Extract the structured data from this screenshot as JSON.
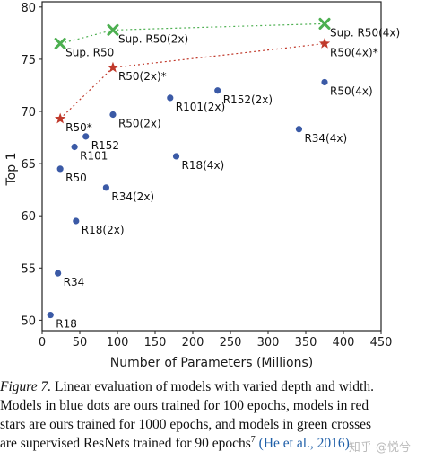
{
  "chart_data": {
    "type": "scatter",
    "xlabel": "Number of Parameters (Millions)",
    "ylabel": "Top 1",
    "xlim": [
      0,
      450
    ],
    "ylim": [
      49,
      80.5
    ],
    "xticks": [
      "0",
      "50",
      "100",
      "150",
      "200",
      "250",
      "300",
      "350",
      "400",
      "450"
    ],
    "yticks": [
      "50",
      "55",
      "60",
      "65",
      "70",
      "75",
      "80"
    ],
    "grid": false,
    "series": [
      {
        "marker": "dot",
        "color": "#3b5aa6",
        "points": [
          {
            "label": "R18",
            "x": 11,
            "y": 50.5
          },
          {
            "label": "R34",
            "x": 21,
            "y": 54.5
          },
          {
            "label": "R18(2x)",
            "x": 45,
            "y": 59.5
          },
          {
            "label": "R50",
            "x": 24,
            "y": 64.5
          },
          {
            "label": "R34(2x)",
            "x": 85,
            "y": 62.7
          },
          {
            "label": "R101",
            "x": 43,
            "y": 66.6
          },
          {
            "label": "R152",
            "x": 58,
            "y": 67.6
          },
          {
            "label": "R18(4x)",
            "x": 178,
            "y": 65.7
          },
          {
            "label": "R50(2x)",
            "x": 94,
            "y": 69.7
          },
          {
            "label": "R101(2x)",
            "x": 170,
            "y": 71.3
          },
          {
            "label": "R152(2x)",
            "x": 233,
            "y": 72.0
          },
          {
            "label": "R34(4x)",
            "x": 341,
            "y": 68.3
          },
          {
            "label": "R50(4x)",
            "x": 375,
            "y": 72.8
          }
        ]
      },
      {
        "marker": "star",
        "color": "#c0392b",
        "connected": true,
        "points": [
          {
            "label": "R50*",
            "x": 24,
            "y": 69.3
          },
          {
            "label": "R50(2x)*",
            "x": 94,
            "y": 74.2
          },
          {
            "label": "R50(4x)*",
            "x": 375,
            "y": 76.5
          }
        ]
      },
      {
        "marker": "cross",
        "color": "#4caf50",
        "connected": true,
        "points": [
          {
            "label": "Sup. R50",
            "x": 24,
            "y": 76.5
          },
          {
            "label": "Sup. R50(2x)",
            "x": 94,
            "y": 77.8
          },
          {
            "label": "Sup. R50(4x)",
            "x": 375,
            "y": 78.4
          }
        ]
      }
    ]
  },
  "caption": {
    "fig_label": "Figure 7.",
    "line1_rest": " Linear evaluation of models with varied depth and width.",
    "line2": "Models in blue dots are ours trained for 100 epochs, models in red",
    "line3": "stars are ours trained for 1000 epochs, and models in green crosses",
    "line4_start": "are supervised ResNets trained for 90 epochs",
    "line4_sup": "7",
    "line4_cite": "(He et al., 2016)",
    "line4_end": "."
  },
  "watermark": "知乎 @悦兮"
}
